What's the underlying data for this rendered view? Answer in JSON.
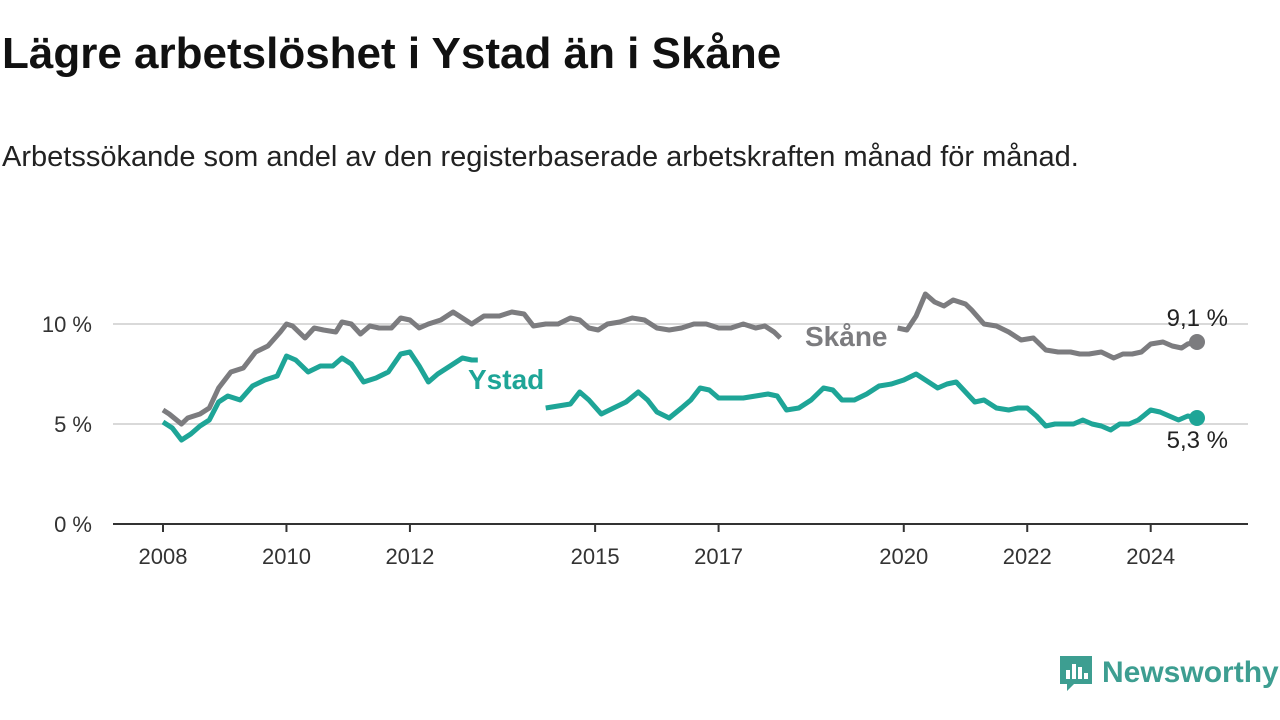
{
  "title": "Lägre arbetslöshet i Ystad än i Skåne",
  "subtitle": "Arbetssökande som andel av den registerbaserade arbetskraften månad för månad.",
  "brand": {
    "name": "Newsworthy",
    "icon": "newsworthy-logo-icon",
    "color": "#3d9e91"
  },
  "chart_data": {
    "type": "line",
    "title": "Lägre arbetslöshet i Ystad än i Skåne",
    "xlabel": "",
    "ylabel": "",
    "xlim": [
      2008,
      2025.3
    ],
    "ylim": [
      0,
      12
    ],
    "grid": true,
    "x_ticks": [
      {
        "value": 2008,
        "label": "2008"
      },
      {
        "value": 2010,
        "label": "2010"
      },
      {
        "value": 2012,
        "label": "2012"
      },
      {
        "value": 2015,
        "label": "2015"
      },
      {
        "value": 2017,
        "label": "2017"
      },
      {
        "value": 2020,
        "label": "2020"
      },
      {
        "value": 2022,
        "label": "2022"
      },
      {
        "value": 2024,
        "label": "2024"
      }
    ],
    "y_ticks": [
      {
        "value": 0,
        "label": "0 %"
      },
      {
        "value": 5,
        "label": "5 %"
      },
      {
        "value": 10,
        "label": "10 %"
      }
    ],
    "series": [
      {
        "name": "Skåne",
        "color": "#7c7c7f",
        "label": "Skåne",
        "end_label": "9,1 %",
        "points": [
          [
            2008.0,
            5.7
          ],
          [
            2008.1,
            5.5
          ],
          [
            2008.3,
            5.0
          ],
          [
            2008.4,
            5.3
          ],
          [
            2008.6,
            5.5
          ],
          [
            2008.75,
            5.8
          ],
          [
            2008.9,
            6.8
          ],
          [
            2009.1,
            7.6
          ],
          [
            2009.3,
            7.8
          ],
          [
            2009.5,
            8.6
          ],
          [
            2009.7,
            8.9
          ],
          [
            2009.9,
            9.6
          ],
          [
            2010.0,
            10.0
          ],
          [
            2010.1,
            9.9
          ],
          [
            2010.3,
            9.3
          ],
          [
            2010.45,
            9.8
          ],
          [
            2010.6,
            9.7
          ],
          [
            2010.8,
            9.6
          ],
          [
            2010.9,
            10.1
          ],
          [
            2011.05,
            10.0
          ],
          [
            2011.2,
            9.5
          ],
          [
            2011.35,
            9.9
          ],
          [
            2011.5,
            9.8
          ],
          [
            2011.7,
            9.8
          ],
          [
            2011.85,
            10.3
          ],
          [
            2012.0,
            10.2
          ],
          [
            2012.15,
            9.8
          ],
          [
            2012.3,
            10.0
          ],
          [
            2012.5,
            10.2
          ],
          [
            2012.7,
            10.6
          ],
          [
            2012.85,
            10.3
          ],
          [
            2013.0,
            10.0
          ],
          [
            2013.2,
            10.4
          ],
          [
            2013.45,
            10.4
          ],
          [
            2013.65,
            10.6
          ],
          [
            2013.85,
            10.5
          ],
          [
            2014.0,
            9.9
          ],
          [
            2014.2,
            10.0
          ],
          [
            2014.4,
            10.0
          ],
          [
            2014.6,
            10.3
          ],
          [
            2014.75,
            10.2
          ],
          [
            2014.9,
            9.8
          ],
          [
            2015.05,
            9.7
          ],
          [
            2015.2,
            10.0
          ],
          [
            2015.4,
            10.1
          ],
          [
            2015.6,
            10.3
          ],
          [
            2015.8,
            10.2
          ],
          [
            2016.0,
            9.8
          ],
          [
            2016.2,
            9.7
          ],
          [
            2016.4,
            9.8
          ],
          [
            2016.6,
            10.0
          ],
          [
            2016.8,
            10.0
          ],
          [
            2017.0,
            9.8
          ],
          [
            2017.2,
            9.8
          ],
          [
            2017.4,
            10.0
          ],
          [
            2017.6,
            9.8
          ],
          [
            2017.75,
            9.9
          ],
          [
            2017.9,
            9.6
          ],
          [
            2018.0,
            9.3
          ],
          [
            2019.9,
            9.8
          ],
          [
            2020.05,
            9.7
          ],
          [
            2020.2,
            10.4
          ],
          [
            2020.35,
            11.5
          ],
          [
            2020.5,
            11.1
          ],
          [
            2020.65,
            10.9
          ],
          [
            2020.8,
            11.2
          ],
          [
            2021.0,
            11.0
          ],
          [
            2021.1,
            10.7
          ],
          [
            2021.3,
            10.0
          ],
          [
            2021.5,
            9.9
          ],
          [
            2021.7,
            9.6
          ],
          [
            2021.9,
            9.2
          ],
          [
            2022.1,
            9.3
          ],
          [
            2022.3,
            8.7
          ],
          [
            2022.5,
            8.6
          ],
          [
            2022.7,
            8.6
          ],
          [
            2022.85,
            8.5
          ],
          [
            2023.0,
            8.5
          ],
          [
            2023.2,
            8.6
          ],
          [
            2023.4,
            8.3
          ],
          [
            2023.55,
            8.5
          ],
          [
            2023.7,
            8.5
          ],
          [
            2023.85,
            8.6
          ],
          [
            2024.0,
            9.0
          ],
          [
            2024.2,
            9.1
          ],
          [
            2024.35,
            8.9
          ],
          [
            2024.5,
            8.8
          ],
          [
            2024.6,
            9.0
          ],
          [
            2024.75,
            9.1
          ]
        ]
      },
      {
        "name": "Ystad",
        "color": "#1ea597",
        "label": "Ystad",
        "end_label": "5,3 %",
        "points": [
          [
            2008.0,
            5.1
          ],
          [
            2008.15,
            4.8
          ],
          [
            2008.3,
            4.2
          ],
          [
            2008.45,
            4.5
          ],
          [
            2008.6,
            4.9
          ],
          [
            2008.75,
            5.2
          ],
          [
            2008.9,
            6.1
          ],
          [
            2009.05,
            6.4
          ],
          [
            2009.25,
            6.2
          ],
          [
            2009.45,
            6.9
          ],
          [
            2009.65,
            7.2
          ],
          [
            2009.85,
            7.4
          ],
          [
            2010.0,
            8.4
          ],
          [
            2010.15,
            8.2
          ],
          [
            2010.35,
            7.6
          ],
          [
            2010.55,
            7.9
          ],
          [
            2010.75,
            7.9
          ],
          [
            2010.9,
            8.3
          ],
          [
            2011.05,
            8.0
          ],
          [
            2011.25,
            7.1
          ],
          [
            2011.45,
            7.3
          ],
          [
            2011.65,
            7.6
          ],
          [
            2011.85,
            8.5
          ],
          [
            2012.0,
            8.6
          ],
          [
            2012.15,
            7.9
          ],
          [
            2012.3,
            7.1
          ],
          [
            2012.45,
            7.5
          ],
          [
            2012.65,
            7.9
          ],
          [
            2012.85,
            8.3
          ],
          [
            2013.0,
            8.2
          ],
          [
            2013.1,
            8.2
          ],
          [
            2014.2,
            5.8
          ],
          [
            2014.4,
            5.9
          ],
          [
            2014.6,
            6.0
          ],
          [
            2014.75,
            6.6
          ],
          [
            2014.9,
            6.2
          ],
          [
            2015.1,
            5.5
          ],
          [
            2015.3,
            5.8
          ],
          [
            2015.5,
            6.1
          ],
          [
            2015.7,
            6.6
          ],
          [
            2015.85,
            6.2
          ],
          [
            2016.0,
            5.6
          ],
          [
            2016.2,
            5.3
          ],
          [
            2016.4,
            5.8
          ],
          [
            2016.55,
            6.2
          ],
          [
            2016.7,
            6.8
          ],
          [
            2016.85,
            6.7
          ],
          [
            2017.0,
            6.3
          ],
          [
            2017.2,
            6.3
          ],
          [
            2017.4,
            6.3
          ],
          [
            2017.6,
            6.4
          ],
          [
            2017.8,
            6.5
          ],
          [
            2017.95,
            6.4
          ],
          [
            2018.1,
            5.7
          ],
          [
            2018.3,
            5.8
          ],
          [
            2018.5,
            6.2
          ],
          [
            2018.7,
            6.8
          ],
          [
            2018.85,
            6.7
          ],
          [
            2019.0,
            6.2
          ],
          [
            2019.2,
            6.2
          ],
          [
            2019.4,
            6.5
          ],
          [
            2019.6,
            6.9
          ],
          [
            2019.8,
            7.0
          ],
          [
            2020.0,
            7.2
          ],
          [
            2020.2,
            7.5
          ],
          [
            2020.4,
            7.1
          ],
          [
            2020.55,
            6.8
          ],
          [
            2020.7,
            7.0
          ],
          [
            2020.85,
            7.1
          ],
          [
            2021.0,
            6.6
          ],
          [
            2021.15,
            6.1
          ],
          [
            2021.3,
            6.2
          ],
          [
            2021.5,
            5.8
          ],
          [
            2021.7,
            5.7
          ],
          [
            2021.85,
            5.8
          ],
          [
            2022.0,
            5.8
          ],
          [
            2022.15,
            5.4
          ],
          [
            2022.3,
            4.9
          ],
          [
            2022.45,
            5.0
          ],
          [
            2022.6,
            5.0
          ],
          [
            2022.75,
            5.0
          ],
          [
            2022.9,
            5.2
          ],
          [
            2023.05,
            5.0
          ],
          [
            2023.2,
            4.9
          ],
          [
            2023.35,
            4.7
          ],
          [
            2023.5,
            5.0
          ],
          [
            2023.65,
            5.0
          ],
          [
            2023.8,
            5.2
          ],
          [
            2024.0,
            5.7
          ],
          [
            2024.15,
            5.6
          ],
          [
            2024.3,
            5.4
          ],
          [
            2024.45,
            5.2
          ],
          [
            2024.6,
            5.4
          ],
          [
            2024.75,
            5.3
          ]
        ]
      }
    ]
  }
}
